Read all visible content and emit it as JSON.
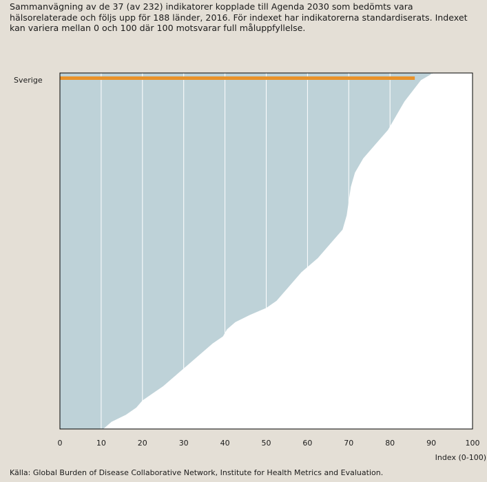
{
  "subtitle": "Sammanvägning av de 37 (av 232) indikatorer kopplade till Agenda 2030 som bedömts vara hälsorelaterade och följs upp för 188 länder, 2016. För indexet har indikatorerna standardiserats. Indexet kan variera mellan 0 och 100 där 100 motsvarar full måluppfyllelse.",
  "source": "Källa: Global Burden of Disease Collaborative Network, Institute for Health Metrics and Evaluation.",
  "colors": {
    "background": "#e4dfd6",
    "fill": "#bed2d8",
    "highlight": "#e8922a",
    "grid": "#ffffff",
    "frame": "#000000"
  },
  "chart_data": {
    "type": "area",
    "orientation": "horizontal",
    "title": "",
    "xlabel": "Index (0-100)",
    "ylabel": "",
    "xlim": [
      0,
      100
    ],
    "xticks": [
      "0",
      "10",
      "20",
      "30",
      "40",
      "50",
      "60",
      "70",
      "80",
      "90",
      "100"
    ],
    "grid": true,
    "n_countries": 188,
    "highlight": {
      "label": "Sverige",
      "value": 86
    },
    "profile": [
      [
        0,
        90.5
      ],
      [
        0.02,
        87.5
      ],
      [
        0.05,
        85.5
      ],
      [
        0.08,
        83.5
      ],
      [
        0.12,
        81.5
      ],
      [
        0.16,
        79.5
      ],
      [
        0.2,
        76.5
      ],
      [
        0.24,
        73.5
      ],
      [
        0.28,
        71.5
      ],
      [
        0.32,
        70.5
      ],
      [
        0.36,
        70.0
      ],
      [
        0.4,
        69.5
      ],
      [
        0.44,
        68.5
      ],
      [
        0.48,
        65.5
      ],
      [
        0.52,
        62.5
      ],
      [
        0.56,
        58.5
      ],
      [
        0.6,
        55.5
      ],
      [
        0.64,
        52.5
      ],
      [
        0.66,
        50.0
      ],
      [
        0.68,
        46.0
      ],
      [
        0.7,
        42.5
      ],
      [
        0.72,
        40.5
      ],
      [
        0.74,
        39.5
      ],
      [
        0.76,
        37.0
      ],
      [
        0.78,
        35.0
      ],
      [
        0.8,
        33.0
      ],
      [
        0.82,
        31.0
      ],
      [
        0.84,
        29.0
      ],
      [
        0.86,
        27.0
      ],
      [
        0.88,
        25.0
      ],
      [
        0.9,
        22.5
      ],
      [
        0.92,
        20.0
      ],
      [
        0.94,
        18.5
      ],
      [
        0.96,
        16.0
      ],
      [
        0.98,
        12.5
      ],
      [
        1.0,
        10.5
      ]
    ]
  }
}
